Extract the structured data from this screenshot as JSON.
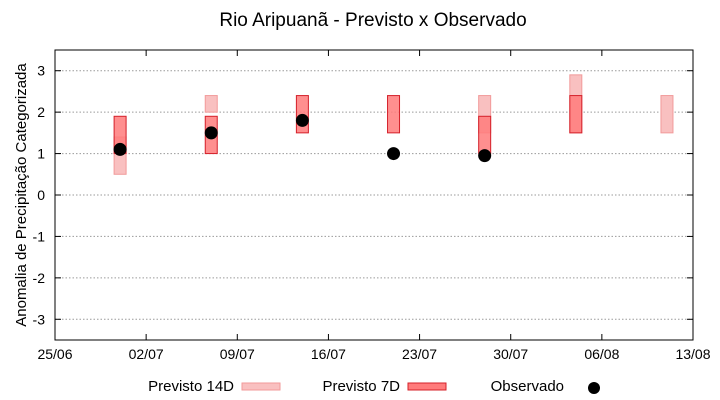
{
  "chart_data": {
    "type": "range-bar-with-markers",
    "title": "Rio Aripuanã - Previsto x Observado",
    "ylabel": "Anomalia de Precipitação Categorizada",
    "xlabel": "",
    "x_ticks": [
      "25/06",
      "02/07",
      "09/07",
      "16/07",
      "23/07",
      "30/07",
      "06/08",
      "13/08"
    ],
    "x_range": [
      "2025-06-25",
      "2025-08-13"
    ],
    "ylim": [
      -3.5,
      3.5
    ],
    "y_ticks": [
      "-3",
      "-2",
      "-1",
      "0",
      "1",
      "2",
      "3"
    ],
    "y_tick_values": [
      -3,
      -2,
      -1,
      0,
      1,
      2,
      3
    ],
    "grid": "horizontal dotted",
    "legend_placement": "bottom",
    "colors": {
      "previsto_14d_fill": "#f9c0c0",
      "previsto_14d_stroke": "#f29a9a",
      "previsto_7d_fill": "#ff7b7b",
      "previsto_7d_stroke": "#d4202a",
      "observado": "#000000"
    },
    "series": [
      {
        "name": "Previsto 14D",
        "kind": "range",
        "points": [
          {
            "x": "2025-06-30",
            "low": 0.5,
            "high": 1.4
          },
          {
            "x": "2025-07-07",
            "low": 2.0,
            "high": 2.4
          },
          {
            "x": "2025-07-28",
            "low": 1.5,
            "high": 2.4
          },
          {
            "x": "2025-08-04",
            "low": 1.5,
            "high": 2.9
          },
          {
            "x": "2025-08-11",
            "low": 1.5,
            "high": 2.4
          }
        ]
      },
      {
        "name": "Previsto 7D",
        "kind": "range",
        "points": [
          {
            "x": "2025-06-30",
            "low": 1.0,
            "high": 1.9
          },
          {
            "x": "2025-07-07",
            "low": 1.0,
            "high": 1.9
          },
          {
            "x": "2025-07-14",
            "low": 1.5,
            "high": 2.4
          },
          {
            "x": "2025-07-21",
            "low": 1.5,
            "high": 2.4
          },
          {
            "x": "2025-07-28",
            "low": 1.0,
            "high": 1.9
          },
          {
            "x": "2025-08-04",
            "low": 1.5,
            "high": 2.4
          }
        ]
      },
      {
        "name": "Observado",
        "kind": "point",
        "points": [
          {
            "x": "2025-06-30",
            "y": 1.1
          },
          {
            "x": "2025-07-07",
            "y": 1.5
          },
          {
            "x": "2025-07-14",
            "y": 1.8
          },
          {
            "x": "2025-07-21",
            "y": 1.0
          },
          {
            "x": "2025-07-28",
            "y": 0.95
          }
        ]
      }
    ]
  }
}
